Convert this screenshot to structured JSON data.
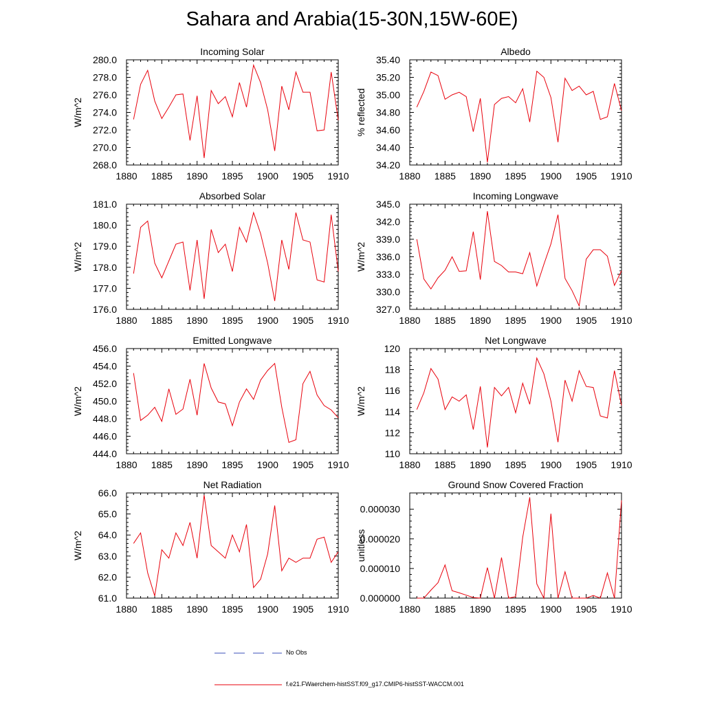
{
  "figure": {
    "title": "Sahara and Arabia(15-30N,15W-60E)",
    "line_color": "#e8000b",
    "obs_color": "#3b4fb8"
  },
  "legend": {
    "obs_label": "No Obs",
    "model_label": "f.e21.FWaerchem-histSST.f09_g17.CMIP6-histSST-WACCM.001"
  },
  "chart_data": [
    {
      "type": "line",
      "title": "Incoming Solar",
      "ylabel": "W/m^2",
      "xlabel": "",
      "xlim": [
        1880,
        1910
      ],
      "ylim": [
        268.0,
        280.0
      ],
      "xticks": [
        1880,
        1885,
        1890,
        1895,
        1900,
        1905,
        1910
      ],
      "yticks": [
        268.0,
        270.0,
        272.0,
        274.0,
        276.0,
        278.0,
        280.0
      ],
      "ytick_labels": [
        "268.0",
        "270.0",
        "272.0",
        "274.0",
        "276.0",
        "278.0",
        "280.0"
      ],
      "x": [
        1881,
        1882,
        1883,
        1884,
        1885,
        1886,
        1887,
        1888,
        1889,
        1890,
        1891,
        1892,
        1893,
        1894,
        1895,
        1896,
        1897,
        1898,
        1899,
        1900,
        1901,
        1902,
        1903,
        1904,
        1905,
        1906,
        1907,
        1908,
        1909,
        1910
      ],
      "series": [
        {
          "values": [
            273.2,
            277.2,
            278.8,
            275.3,
            273.3,
            274.6,
            276.0,
            276.1,
            270.8,
            275.9,
            268.8,
            276.5,
            275.0,
            275.8,
            273.5,
            277.4,
            274.6,
            279.4,
            277.4,
            274.3,
            269.6,
            277.0,
            274.3,
            278.6,
            276.3,
            276.3,
            271.9,
            272.0,
            278.6,
            273.1
          ]
        }
      ]
    },
    {
      "type": "line",
      "title": "Albedo",
      "ylabel": "% reflected",
      "xlabel": "",
      "xlim": [
        1880,
        1910
      ],
      "ylim": [
        34.2,
        35.4
      ],
      "xticks": [
        1880,
        1885,
        1890,
        1895,
        1900,
        1905,
        1910
      ],
      "yticks": [
        34.2,
        34.4,
        34.6,
        34.8,
        35.0,
        35.2,
        35.4
      ],
      "ytick_labels": [
        "34.20",
        "34.40",
        "34.60",
        "34.80",
        "35.00",
        "35.20",
        "35.40"
      ],
      "x": [
        1881,
        1882,
        1883,
        1884,
        1885,
        1886,
        1887,
        1888,
        1889,
        1890,
        1891,
        1892,
        1893,
        1894,
        1895,
        1896,
        1897,
        1898,
        1899,
        1900,
        1901,
        1902,
        1903,
        1904,
        1905,
        1906,
        1907,
        1908,
        1909,
        1910
      ],
      "series": [
        {
          "values": [
            34.86,
            35.04,
            35.26,
            35.22,
            34.95,
            35.0,
            35.03,
            34.98,
            34.58,
            34.96,
            34.23,
            34.89,
            34.96,
            34.98,
            34.91,
            35.07,
            34.69,
            35.27,
            35.2,
            34.97,
            34.46,
            35.19,
            35.05,
            35.1,
            35.0,
            35.04,
            34.72,
            34.75,
            35.13,
            34.82
          ]
        }
      ]
    },
    {
      "type": "line",
      "title": "Absorbed Solar",
      "ylabel": "W/m^2",
      "xlabel": "",
      "xlim": [
        1880,
        1910
      ],
      "ylim": [
        176.0,
        181.0
      ],
      "xticks": [
        1880,
        1885,
        1890,
        1895,
        1900,
        1905,
        1910
      ],
      "yticks": [
        176.0,
        177.0,
        178.0,
        179.0,
        180.0,
        181.0
      ],
      "ytick_labels": [
        "176.0",
        "177.0",
        "178.0",
        "179.0",
        "180.0",
        "181.0"
      ],
      "x": [
        1881,
        1882,
        1883,
        1884,
        1885,
        1886,
        1887,
        1888,
        1889,
        1890,
        1891,
        1892,
        1893,
        1894,
        1895,
        1896,
        1897,
        1898,
        1899,
        1900,
        1901,
        1902,
        1903,
        1904,
        1905,
        1906,
        1907,
        1908,
        1909,
        1910
      ],
      "series": [
        {
          "values": [
            177.7,
            179.9,
            180.2,
            178.2,
            177.5,
            178.3,
            179.1,
            179.2,
            176.9,
            179.3,
            176.5,
            179.8,
            178.7,
            179.1,
            177.8,
            179.9,
            179.2,
            180.6,
            179.6,
            178.2,
            176.4,
            179.3,
            177.9,
            180.6,
            179.3,
            179.2,
            177.4,
            177.3,
            180.5,
            177.8
          ]
        }
      ]
    },
    {
      "type": "line",
      "title": "Incoming Longwave",
      "ylabel": "W/m^2",
      "xlabel": "",
      "xlim": [
        1880,
        1910
      ],
      "ylim": [
        327.0,
        345.0
      ],
      "xticks": [
        1880,
        1885,
        1890,
        1895,
        1900,
        1905,
        1910
      ],
      "yticks": [
        327.0,
        330.0,
        333.0,
        336.0,
        339.0,
        342.0,
        345.0
      ],
      "ytick_labels": [
        "327.0",
        "330.0",
        "333.0",
        "336.0",
        "339.0",
        "342.0",
        "345.0"
      ],
      "x": [
        1881,
        1882,
        1883,
        1884,
        1885,
        1886,
        1887,
        1888,
        1889,
        1890,
        1891,
        1892,
        1893,
        1894,
        1895,
        1896,
        1897,
        1898,
        1899,
        1900,
        1901,
        1902,
        1903,
        1904,
        1905,
        1906,
        1907,
        1908,
        1909,
        1910
      ],
      "series": [
        {
          "values": [
            339.0,
            332.2,
            330.5,
            332.4,
            333.7,
            336.0,
            333.5,
            333.6,
            340.3,
            332.1,
            343.8,
            335.2,
            334.5,
            333.4,
            333.4,
            333.1,
            336.7,
            331.0,
            334.7,
            338.2,
            343.2,
            332.3,
            330.2,
            327.6,
            335.6,
            337.2,
            337.2,
            336.1,
            331.1,
            333.6
          ]
        }
      ]
    },
    {
      "type": "line",
      "title": "Emitted Longwave",
      "ylabel": "W/m^2",
      "xlabel": "",
      "xlim": [
        1880,
        1910
      ],
      "ylim": [
        444.0,
        456.0
      ],
      "xticks": [
        1880,
        1885,
        1890,
        1895,
        1900,
        1905,
        1910
      ],
      "yticks": [
        444.0,
        446.0,
        448.0,
        450.0,
        452.0,
        454.0,
        456.0
      ],
      "ytick_labels": [
        "444.0",
        "446.0",
        "448.0",
        "450.0",
        "452.0",
        "454.0",
        "456.0"
      ],
      "x": [
        1881,
        1882,
        1883,
        1884,
        1885,
        1886,
        1887,
        1888,
        1889,
        1890,
        1891,
        1892,
        1893,
        1894,
        1895,
        1896,
        1897,
        1898,
        1899,
        1900,
        1901,
        1902,
        1903,
        1904,
        1905,
        1906,
        1907,
        1908,
        1909,
        1910
      ],
      "series": [
        {
          "values": [
            453.2,
            447.8,
            448.4,
            449.3,
            447.7,
            451.4,
            448.5,
            449.1,
            452.5,
            448.4,
            454.3,
            451.5,
            449.9,
            449.7,
            447.2,
            449.9,
            451.4,
            450.2,
            452.4,
            453.5,
            454.3,
            449.3,
            445.3,
            445.6,
            452.0,
            453.4,
            450.7,
            449.5,
            449.0,
            448.1
          ]
        }
      ]
    },
    {
      "type": "line",
      "title": "Net Longwave",
      "ylabel": "W/m^2",
      "xlabel": "",
      "xlim": [
        1880,
        1910
      ],
      "ylim": [
        110,
        120
      ],
      "xticks": [
        1880,
        1885,
        1890,
        1895,
        1900,
        1905,
        1910
      ],
      "yticks": [
        110,
        112,
        114,
        116,
        118,
        120
      ],
      "ytick_labels": [
        "110",
        "112",
        "114",
        "116",
        "118",
        "120"
      ],
      "x": [
        1881,
        1882,
        1883,
        1884,
        1885,
        1886,
        1887,
        1888,
        1889,
        1890,
        1891,
        1892,
        1893,
        1894,
        1895,
        1896,
        1897,
        1898,
        1899,
        1900,
        1901,
        1902,
        1903,
        1904,
        1905,
        1906,
        1907,
        1908,
        1909,
        1910
      ],
      "series": [
        {
          "values": [
            114.2,
            115.8,
            118.1,
            117.1,
            114.2,
            115.4,
            115.0,
            115.6,
            112.3,
            116.4,
            110.6,
            116.3,
            115.5,
            116.3,
            113.9,
            116.7,
            114.7,
            119.1,
            117.6,
            115.0,
            111.1,
            117.0,
            115.0,
            117.9,
            116.4,
            116.3,
            113.6,
            113.4,
            117.9,
            114.6
          ]
        }
      ]
    },
    {
      "type": "line",
      "title": "Net Radiation",
      "ylabel": "W/m^2",
      "xlabel": "",
      "xlim": [
        1880,
        1910
      ],
      "ylim": [
        61.0,
        66.0
      ],
      "xticks": [
        1880,
        1885,
        1890,
        1895,
        1900,
        1905,
        1910
      ],
      "yticks": [
        61.0,
        62.0,
        63.0,
        64.0,
        65.0,
        66.0
      ],
      "ytick_labels": [
        "61.0",
        "62.0",
        "63.0",
        "64.0",
        "65.0",
        "66.0"
      ],
      "x": [
        1881,
        1882,
        1883,
        1884,
        1885,
        1886,
        1887,
        1888,
        1889,
        1890,
        1891,
        1892,
        1893,
        1894,
        1895,
        1896,
        1897,
        1898,
        1899,
        1900,
        1901,
        1902,
        1903,
        1904,
        1905,
        1906,
        1907,
        1908,
        1909,
        1910
      ],
      "series": [
        {
          "values": [
            63.6,
            64.1,
            62.2,
            61.1,
            63.3,
            62.9,
            64.1,
            63.5,
            64.6,
            62.9,
            65.9,
            63.5,
            63.2,
            62.9,
            64.0,
            63.2,
            64.5,
            61.5,
            61.9,
            63.1,
            65.4,
            62.3,
            62.9,
            62.7,
            62.9,
            62.9,
            63.8,
            63.9,
            62.7,
            63.2
          ]
        }
      ]
    },
    {
      "type": "line",
      "title": "Ground Snow Covered Fraction",
      "ylabel": "unitless",
      "xlabel": "",
      "xlim": [
        1880,
        1910
      ],
      "ylim": [
        0.0,
        3.55e-05
      ],
      "xticks": [
        1880,
        1885,
        1890,
        1895,
        1900,
        1905,
        1910
      ],
      "yticks": [
        0.0,
        1e-05,
        2e-05,
        3e-05
      ],
      "ytick_labels": [
        "0.000000",
        "0.000010",
        "0.000020",
        "0.000030"
      ],
      "x": [
        1881,
        1882,
        1883,
        1884,
        1885,
        1886,
        1887,
        1888,
        1889,
        1890,
        1891,
        1892,
        1893,
        1894,
        1895,
        1896,
        1897,
        1898,
        1899,
        1900,
        1901,
        1902,
        1903,
        1904,
        1905,
        1906,
        1907,
        1908,
        1909,
        1910
      ],
      "series": [
        {
          "values": [
            0.0,
            0.0,
            2.7e-06,
            5.2e-06,
            1.12e-05,
            2.5e-06,
            1.8e-06,
            1e-06,
            2e-07,
            0.0,
            1.03e-05,
            0.0,
            1.37e-05,
            0.0,
            5e-07,
            2.05e-05,
            3.4e-05,
            4.8e-06,
            0.0,
            2.85e-05,
            0.0,
            8.9e-06,
            0.0,
            0.0,
            0.0,
            9e-07,
            0.0,
            8.5e-06,
            0.0,
            3.3e-05
          ]
        }
      ]
    }
  ]
}
